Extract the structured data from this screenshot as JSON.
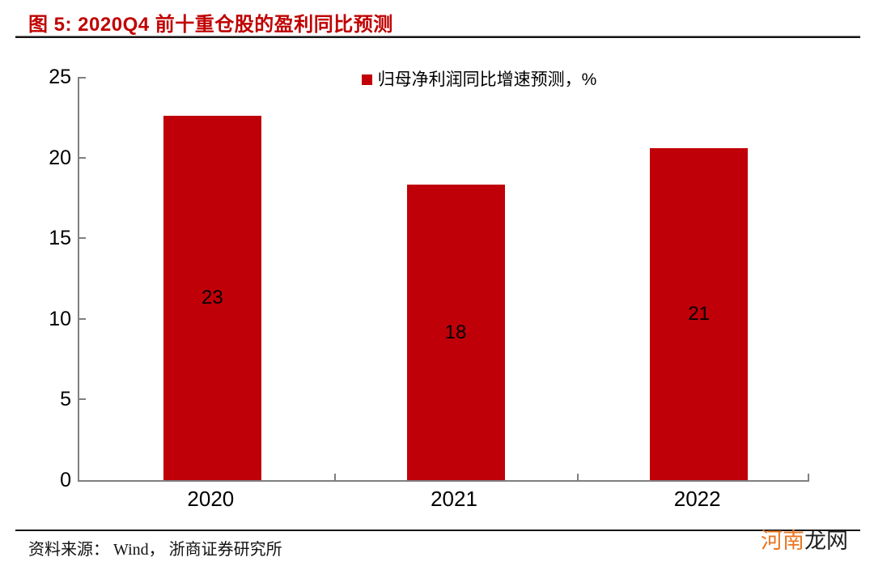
{
  "header": {
    "title": "图  5: 2020Q4 前十重仓股的盈利同比预测"
  },
  "chart_data": {
    "type": "bar",
    "title": "2020Q4 前十重仓股的盈利同比预测",
    "categories": [
      "2020",
      "2021",
      "2022"
    ],
    "values": [
      22.6,
      18.3,
      20.6
    ],
    "data_labels": [
      "23",
      "18",
      "21"
    ],
    "series_name": "归母净利润同比增速预测，%",
    "xlabel": "",
    "ylabel": "",
    "ylim": [
      0,
      25
    ],
    "yticks": [
      0,
      5,
      10,
      15,
      20,
      25
    ],
    "grid": false,
    "legend_position": "top-center",
    "bar_color": "#C00008"
  },
  "legend": {
    "label": "归母净利润同比增速预测，%"
  },
  "footer": {
    "source": "资料来源： Wind， 浙商证券研究所"
  },
  "watermark": {
    "part_orange": "河南",
    "part_dark": "龙网"
  },
  "colors": {
    "accent": "#C00000",
    "bar": "#C00008",
    "axis": "#7f7f7f",
    "watermark_orange": "#E87722"
  }
}
